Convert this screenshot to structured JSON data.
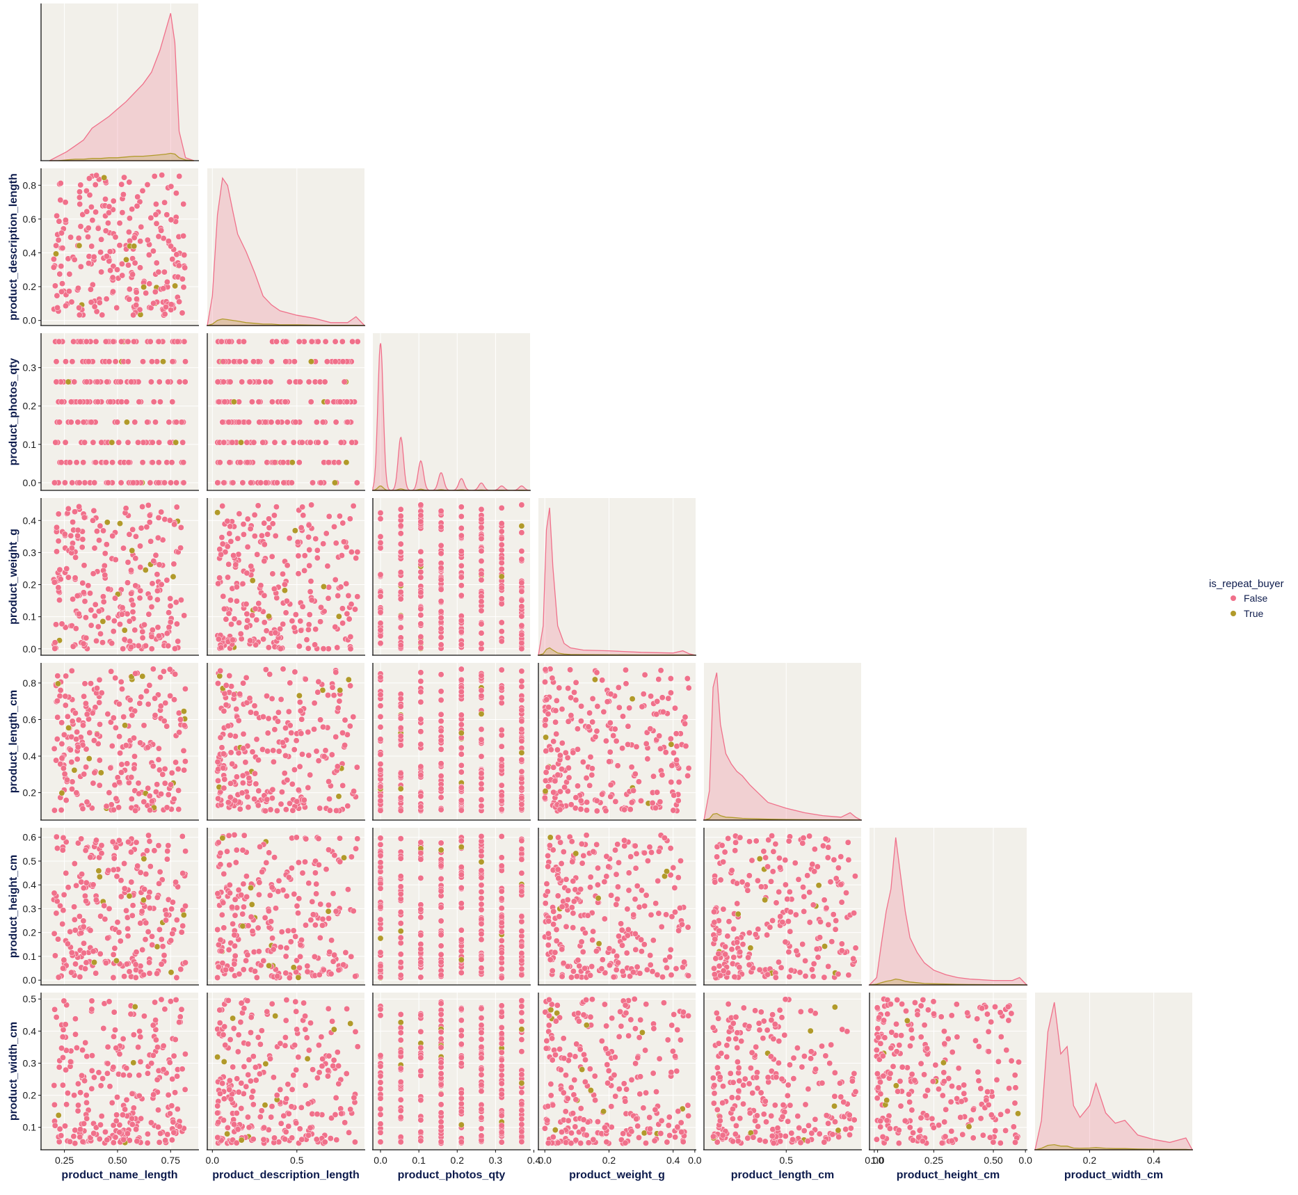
{
  "chart_data": {
    "type": "pairplot",
    "hue": "is_repeat_buyer",
    "colors": {
      "False": "#f0708a",
      "True": "#b19a2a",
      "panel_bg": "#f2f0ea",
      "grid": "#ffffff"
    },
    "legend": {
      "title": "is_repeat_buyer",
      "placement": "right",
      "entries": [
        {
          "label": "False",
          "color": "#f0708a"
        },
        {
          "label": "True",
          "color": "#b19a2a"
        }
      ]
    },
    "grid": true,
    "corner": true,
    "variables": [
      {
        "name": "product_name_length",
        "range": [
          0.14,
          0.88
        ],
        "ticks": [
          0.25,
          0.5,
          0.75
        ],
        "tick_labels": [
          "0.25",
          "0.50",
          "0.75"
        ],
        "data_range": [
          0.2,
          0.82
        ]
      },
      {
        "name": "product_description_length",
        "range": [
          -0.03,
          0.9
        ],
        "ticks": [
          0.0,
          0.2,
          0.4,
          0.6,
          0.8
        ],
        "tick_labels": [
          "0.0",
          "0.2",
          "0.4",
          "0.6",
          "0.8"
        ],
        "x_ticks": [
          0.0,
          0.5
        ],
        "x_tick_labels": [
          "0.0",
          "0.5"
        ],
        "data_range": [
          0.03,
          0.86
        ]
      },
      {
        "name": "product_photos_qty",
        "range": [
          -0.02,
          0.39
        ],
        "ticks": [
          0.0,
          0.1,
          0.2,
          0.3
        ],
        "tick_labels": [
          "0.0",
          "0.1",
          "0.2",
          "0.3"
        ],
        "x_ticks": [
          0.0,
          0.1,
          0.2,
          0.3,
          0.4
        ],
        "x_tick_labels": [
          "0.0",
          "0.1",
          "0.2",
          "0.3",
          "0.4"
        ],
        "discrete_values": [
          0.0,
          0.053,
          0.105,
          0.158,
          0.211,
          0.263,
          0.316,
          0.368
        ]
      },
      {
        "name": "product_weight_g",
        "range": [
          -0.02,
          0.47
        ],
        "ticks": [
          0.0,
          0.1,
          0.2,
          0.3,
          0.4
        ],
        "tick_labels": [
          "0.0",
          "0.1",
          "0.2",
          "0.3",
          "0.4"
        ],
        "x_ticks": [
          0.0,
          0.2,
          0.4
        ],
        "x_tick_labels": [
          "0.0",
          "0.2",
          "0.4"
        ],
        "data_range": [
          0.0,
          0.45
        ]
      },
      {
        "name": "product_length_cm",
        "range": [
          0.05,
          0.91
        ],
        "ticks": [
          0.2,
          0.4,
          0.6,
          0.8
        ],
        "tick_labels": [
          "0.2",
          "0.4",
          "0.6",
          "0.8"
        ],
        "x_ticks": [
          0.0,
          0.5,
          1.0
        ],
        "x_tick_labels": [
          "0.0",
          "0.5",
          "1.0"
        ],
        "data_range": [
          0.1,
          0.88
        ]
      },
      {
        "name": "product_height_cm",
        "range": [
          -0.02,
          0.64
        ],
        "ticks": [
          0.0,
          0.1,
          0.2,
          0.3,
          0.4,
          0.5,
          0.6
        ],
        "tick_labels": [
          "0.0",
          "0.1",
          "0.2",
          "0.3",
          "0.4",
          "0.5",
          "0.6"
        ],
        "x_ticks": [
          0.0,
          0.25,
          0.5
        ],
        "x_tick_labels": [
          "0.00",
          "0.25",
          "0.50"
        ],
        "data_range": [
          0.01,
          0.61
        ]
      },
      {
        "name": "product_width_cm",
        "range": [
          0.03,
          0.52
        ],
        "ticks": [
          0.1,
          0.2,
          0.3,
          0.4,
          0.5
        ],
        "tick_labels": [
          "0.1",
          "0.2",
          "0.3",
          "0.4",
          "0.5"
        ],
        "x_ticks": [
          0.0,
          0.2,
          0.4
        ],
        "x_tick_labels": [
          "0.0",
          "0.2",
          "0.4"
        ],
        "data_range": [
          0.05,
          0.5
        ]
      }
    ],
    "diagonal_kde": [
      {
        "variable": "product_name_length",
        "x": [
          0.18,
          0.22,
          0.26,
          0.3,
          0.34,
          0.38,
          0.42,
          0.46,
          0.5,
          0.54,
          0.58,
          0.62,
          0.66,
          0.7,
          0.73,
          0.75,
          0.77,
          0.79,
          0.82,
          0.86
        ],
        "False": [
          0.0,
          0.03,
          0.06,
          0.1,
          0.14,
          0.22,
          0.26,
          0.3,
          0.35,
          0.4,
          0.46,
          0.52,
          0.6,
          0.75,
          0.9,
          1.0,
          0.8,
          0.2,
          0.02,
          0.0
        ],
        "True": [
          0.0,
          0.0,
          0.005,
          0.01,
          0.01,
          0.015,
          0.015,
          0.02,
          0.02,
          0.025,
          0.03,
          0.03,
          0.035,
          0.04,
          0.045,
          0.05,
          0.045,
          0.02,
          0.005,
          0.0
        ]
      },
      {
        "variable": "product_description_length",
        "x": [
          -0.03,
          0.0,
          0.03,
          0.06,
          0.09,
          0.12,
          0.15,
          0.2,
          0.25,
          0.3,
          0.35,
          0.4,
          0.5,
          0.6,
          0.7,
          0.8,
          0.85,
          0.9
        ],
        "False": [
          0.0,
          0.2,
          0.75,
          1.0,
          0.95,
          0.78,
          0.62,
          0.5,
          0.36,
          0.2,
          0.14,
          0.1,
          0.07,
          0.05,
          0.02,
          0.02,
          0.06,
          0.0
        ],
        "True": [
          0.0,
          0.01,
          0.035,
          0.045,
          0.04,
          0.035,
          0.03,
          0.02,
          0.015,
          0.01,
          0.01,
          0.005,
          0.005,
          0.003,
          0.002,
          0.002,
          0.002,
          0.0
        ]
      },
      {
        "variable": "product_photos_qty",
        "x": [
          0.0,
          0.053,
          0.105,
          0.158,
          0.211,
          0.263,
          0.316,
          0.368
        ],
        "False": [
          1.0,
          0.36,
          0.2,
          0.12,
          0.08,
          0.05,
          0.03,
          0.03
        ],
        "True": [
          0.03,
          0.01,
          0.008,
          0.005,
          0.004,
          0.003,
          0.002,
          0.002
        ],
        "peak_width": 0.007
      },
      {
        "variable": "product_weight_g",
        "x": [
          -0.02,
          -0.005,
          0.005,
          0.015,
          0.025,
          0.04,
          0.06,
          0.08,
          0.12,
          0.2,
          0.3,
          0.4,
          0.43,
          0.45,
          0.47
        ],
        "False": [
          0.0,
          0.2,
          0.85,
          1.0,
          0.6,
          0.2,
          0.08,
          0.05,
          0.035,
          0.03,
          0.02,
          0.015,
          0.03,
          0.01,
          0.0
        ],
        "True": [
          0.0,
          0.01,
          0.04,
          0.05,
          0.035,
          0.015,
          0.008,
          0.005,
          0.004,
          0.003,
          0.002,
          0.002,
          0.002,
          0.001,
          0.0
        ]
      },
      {
        "variable": "product_length_cm",
        "x": [
          0.05,
          0.08,
          0.1,
          0.12,
          0.14,
          0.17,
          0.2,
          0.23,
          0.26,
          0.3,
          0.35,
          0.4,
          0.5,
          0.6,
          0.7,
          0.8,
          0.85,
          0.88,
          0.91
        ],
        "False": [
          0.0,
          0.2,
          0.9,
          1.0,
          0.65,
          0.45,
          0.38,
          0.33,
          0.3,
          0.24,
          0.18,
          0.12,
          0.08,
          0.05,
          0.03,
          0.02,
          0.05,
          0.02,
          0.0
        ],
        "True": [
          0.0,
          0.01,
          0.04,
          0.045,
          0.03,
          0.02,
          0.018,
          0.015,
          0.012,
          0.01,
          0.008,
          0.006,
          0.004,
          0.003,
          0.002,
          0.001,
          0.002,
          0.001,
          0.0
        ]
      },
      {
        "variable": "product_height_cm",
        "x": [
          -0.02,
          0.01,
          0.03,
          0.05,
          0.07,
          0.09,
          0.11,
          0.13,
          0.15,
          0.18,
          0.21,
          0.25,
          0.3,
          0.35,
          0.4,
          0.5,
          0.58,
          0.61,
          0.64
        ],
        "False": [
          0.0,
          0.05,
          0.28,
          0.5,
          0.65,
          1.0,
          0.75,
          0.5,
          0.32,
          0.22,
          0.15,
          0.1,
          0.07,
          0.05,
          0.04,
          0.03,
          0.03,
          0.05,
          0.0
        ],
        "True": [
          0.0,
          0.005,
          0.015,
          0.025,
          0.03,
          0.04,
          0.035,
          0.025,
          0.02,
          0.015,
          0.01,
          0.008,
          0.006,
          0.004,
          0.003,
          0.002,
          0.002,
          0.002,
          0.0
        ]
      },
      {
        "variable": "product_width_cm",
        "x": [
          0.03,
          0.05,
          0.07,
          0.09,
          0.11,
          0.13,
          0.15,
          0.17,
          0.2,
          0.22,
          0.25,
          0.28,
          0.31,
          0.35,
          0.4,
          0.45,
          0.5,
          0.52
        ],
        "False": [
          0.0,
          0.2,
          0.8,
          1.0,
          0.65,
          0.7,
          0.3,
          0.22,
          0.3,
          0.45,
          0.25,
          0.18,
          0.2,
          0.1,
          0.07,
          0.05,
          0.08,
          0.0
        ],
        "True": [
          0.0,
          0.01,
          0.03,
          0.035,
          0.025,
          0.025,
          0.012,
          0.01,
          0.012,
          0.015,
          0.01,
          0.008,
          0.008,
          0.005,
          0.004,
          0.003,
          0.003,
          0.0
        ]
      }
    ],
    "scatter_points_per_panel": 260,
    "repeat_buyer_fraction": 0.05
  }
}
